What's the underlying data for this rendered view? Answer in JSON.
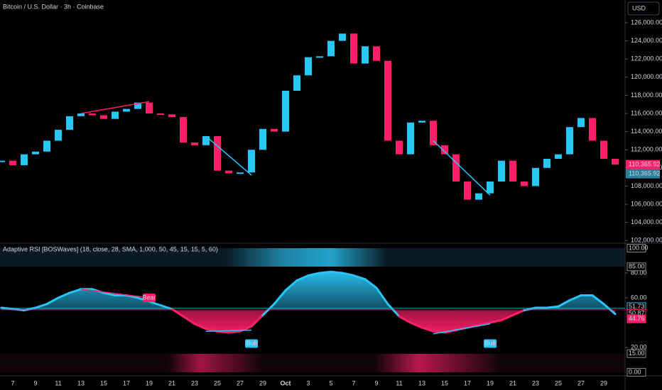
{
  "chart_data": [
    {
      "type": "candles",
      "title": "Bitcoin / U.S. Dollar · 3h · Coinbase",
      "currency": "USD",
      "x": [
        null,
        "7",
        null,
        "9",
        null,
        "11",
        null,
        "13",
        null,
        "15",
        null,
        "17",
        null,
        "19",
        null,
        "21",
        null,
        "23",
        null,
        "25",
        null,
        "27",
        null,
        "29",
        null,
        "Oct",
        null,
        "3",
        null,
        "5",
        null,
        "7",
        null,
        "9",
        null,
        "11",
        null,
        "13",
        null,
        "15",
        null,
        "17",
        null,
        "19",
        null,
        "21",
        null,
        "23",
        null,
        "25",
        null,
        "27",
        null,
        "29",
        null
      ],
      "values": [
        110800,
        110300,
        111500,
        111800,
        113000,
        114200,
        115700,
        116000,
        115800,
        115400,
        116200,
        116500,
        117200,
        116000,
        115900,
        115600,
        112800,
        112500,
        113500,
        109700,
        109400,
        109500,
        112000,
        114300,
        114000,
        118500,
        120200,
        122200,
        122300,
        124000,
        124800,
        121500,
        123400,
        121800,
        113000,
        111500,
        115000,
        115200,
        112500,
        111500,
        108500,
        106500,
        107200,
        108500,
        110800,
        108500,
        108000,
        110000,
        111000,
        111500,
        114500,
        115500,
        113000,
        111000,
        110366
      ],
      "up_color": "#29c5f6",
      "down_color": "#ff1f6b",
      "ylim": [
        101940,
        128500
      ],
      "yticks": [
        {
          "value": 102000,
          "label": "102,000.00"
        },
        {
          "value": 104000,
          "label": "104,000.00"
        },
        {
          "value": 106000,
          "label": "106,000.00"
        },
        {
          "value": 108000,
          "label": "108,000.00"
        },
        {
          "value": 110000,
          "label": "110,000.00"
        },
        {
          "value": 112000,
          "label": "112,000.00"
        },
        {
          "value": 114000,
          "label": "114,000.00"
        },
        {
          "value": 116000,
          "label": "116,000.00"
        },
        {
          "value": 118000,
          "label": "118,000.00"
        },
        {
          "value": 120000,
          "label": "120,000.00"
        },
        {
          "value": 122000,
          "label": "122,000.00"
        },
        {
          "value": 124000,
          "label": "124,000.00"
        },
        {
          "value": 126000,
          "label": "126,000.00"
        }
      ],
      "price_labels": [
        {
          "value": 110365.92,
          "label": "110,365.92",
          "color": "#ff1f6b"
        },
        {
          "value": 110365.92,
          "label": "110,365.92",
          "color": "#2a7f9e"
        }
      ],
      "lines": [
        {
          "x": [
            7,
            13
          ],
          "y": [
            116000,
            117300
          ],
          "color": "#ff1f6b"
        },
        {
          "x": [
            18,
            22
          ],
          "y": [
            113500,
            109200
          ],
          "color": "#29c5f6"
        },
        {
          "x": [
            38,
            43
          ],
          "y": [
            113000,
            107000
          ],
          "color": "#29c5f6"
        }
      ]
    },
    {
      "type": "rsi",
      "title": "Adaptive RSI [BOSWaves] (18, close, 28, SMA, 1,000, 50, 45, 15, 15, 5, 60)",
      "values": [
        52,
        51,
        50,
        52,
        55,
        60,
        64,
        67,
        67,
        64,
        62,
        62,
        60,
        57,
        54,
        51,
        45,
        39,
        35,
        33,
        32,
        33,
        37,
        46,
        55,
        66,
        74,
        78,
        80,
        81,
        80,
        78,
        75,
        68,
        55,
        45,
        40,
        36,
        33,
        32,
        34,
        36,
        38,
        40,
        42,
        46,
        50,
        52,
        52,
        53,
        58,
        62,
        62,
        55,
        47
      ],
      "up_color": "#29c5f6",
      "down_color": "#ff1f6b",
      "ylim": [
        0,
        100
      ],
      "yticks": [
        {
          "value": 20,
          "label": "20.00"
        },
        {
          "value": 60,
          "label": "60.00"
        },
        {
          "value": 80,
          "label": "80.00"
        }
      ],
      "level_labels": [
        {
          "value": 100,
          "label": "100.00",
          "color": "#888888"
        },
        {
          "value": 85,
          "label": "85.00",
          "color": "#888888"
        },
        {
          "value": 51.73,
          "label": "51.73",
          "color": "#29c5f6"
        },
        {
          "value": 50.87,
          "label": "50.87",
          "color": "#ff1f6b"
        },
        {
          "value": 44.76,
          "label": "44.76",
          "color": "#ff1f6b"
        },
        {
          "value": 15,
          "label": "15.00",
          "color": "#888888"
        },
        {
          "value": 0,
          "label": "0.00",
          "color": "#888888"
        }
      ],
      "lines": [
        {
          "x": [
            7,
            13
          ],
          "y": [
            67,
            60
          ],
          "color": "#ff1f6b"
        },
        {
          "x": [
            18,
            22
          ],
          "y": [
            33,
            34
          ],
          "color": "#29c5f6"
        },
        {
          "x": [
            38,
            43
          ],
          "y": [
            31,
            39
          ],
          "color": "#29c5f6"
        }
      ],
      "annotations": [
        {
          "text": "Bear",
          "x": 13,
          "y": 60,
          "color": "#ff1f6b"
        },
        {
          "text": "Bull",
          "x": 22,
          "y": 30,
          "color": "#29c5f6"
        },
        {
          "text": "Bull",
          "x": 43,
          "y": 30,
          "color": "#29c5f6"
        }
      ]
    }
  ]
}
